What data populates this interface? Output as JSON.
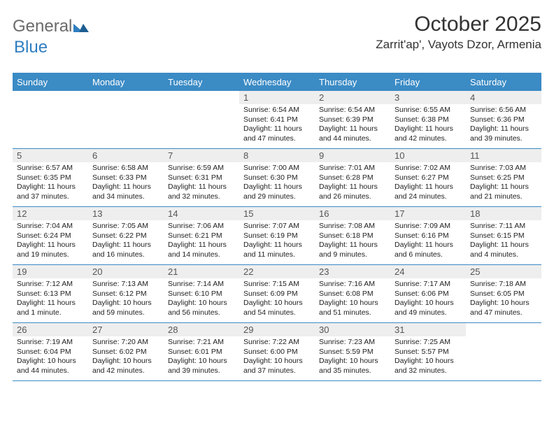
{
  "logo": {
    "textGray": "General",
    "textBlue": "Blue"
  },
  "title": "October 2025",
  "location": "Zarrit'ap', Vayots Dzor, Armenia",
  "colors": {
    "headerBar": "#3b8bc5",
    "dayBg": "#eeeeee",
    "white": "#ffffff",
    "textDark": "#333333",
    "textBody": "#222222",
    "logoGray": "#6a6a6a",
    "logoBlue": "#2f7ec0"
  },
  "weekdays": [
    "Sunday",
    "Monday",
    "Tuesday",
    "Wednesday",
    "Thursday",
    "Friday",
    "Saturday"
  ],
  "weeks": [
    [
      null,
      null,
      null,
      {
        "n": "1",
        "sr": "6:54 AM",
        "ss": "6:41 PM",
        "dl": "11 hours and 47 minutes."
      },
      {
        "n": "2",
        "sr": "6:54 AM",
        "ss": "6:39 PM",
        "dl": "11 hours and 44 minutes."
      },
      {
        "n": "3",
        "sr": "6:55 AM",
        "ss": "6:38 PM",
        "dl": "11 hours and 42 minutes."
      },
      {
        "n": "4",
        "sr": "6:56 AM",
        "ss": "6:36 PM",
        "dl": "11 hours and 39 minutes."
      }
    ],
    [
      {
        "n": "5",
        "sr": "6:57 AM",
        "ss": "6:35 PM",
        "dl": "11 hours and 37 minutes."
      },
      {
        "n": "6",
        "sr": "6:58 AM",
        "ss": "6:33 PM",
        "dl": "11 hours and 34 minutes."
      },
      {
        "n": "7",
        "sr": "6:59 AM",
        "ss": "6:31 PM",
        "dl": "11 hours and 32 minutes."
      },
      {
        "n": "8",
        "sr": "7:00 AM",
        "ss": "6:30 PM",
        "dl": "11 hours and 29 minutes."
      },
      {
        "n": "9",
        "sr": "7:01 AM",
        "ss": "6:28 PM",
        "dl": "11 hours and 26 minutes."
      },
      {
        "n": "10",
        "sr": "7:02 AM",
        "ss": "6:27 PM",
        "dl": "11 hours and 24 minutes."
      },
      {
        "n": "11",
        "sr": "7:03 AM",
        "ss": "6:25 PM",
        "dl": "11 hours and 21 minutes."
      }
    ],
    [
      {
        "n": "12",
        "sr": "7:04 AM",
        "ss": "6:24 PM",
        "dl": "11 hours and 19 minutes."
      },
      {
        "n": "13",
        "sr": "7:05 AM",
        "ss": "6:22 PM",
        "dl": "11 hours and 16 minutes."
      },
      {
        "n": "14",
        "sr": "7:06 AM",
        "ss": "6:21 PM",
        "dl": "11 hours and 14 minutes."
      },
      {
        "n": "15",
        "sr": "7:07 AM",
        "ss": "6:19 PM",
        "dl": "11 hours and 11 minutes."
      },
      {
        "n": "16",
        "sr": "7:08 AM",
        "ss": "6:18 PM",
        "dl": "11 hours and 9 minutes."
      },
      {
        "n": "17",
        "sr": "7:09 AM",
        "ss": "6:16 PM",
        "dl": "11 hours and 6 minutes."
      },
      {
        "n": "18",
        "sr": "7:11 AM",
        "ss": "6:15 PM",
        "dl": "11 hours and 4 minutes."
      }
    ],
    [
      {
        "n": "19",
        "sr": "7:12 AM",
        "ss": "6:13 PM",
        "dl": "11 hours and 1 minute."
      },
      {
        "n": "20",
        "sr": "7:13 AM",
        "ss": "6:12 PM",
        "dl": "10 hours and 59 minutes."
      },
      {
        "n": "21",
        "sr": "7:14 AM",
        "ss": "6:10 PM",
        "dl": "10 hours and 56 minutes."
      },
      {
        "n": "22",
        "sr": "7:15 AM",
        "ss": "6:09 PM",
        "dl": "10 hours and 54 minutes."
      },
      {
        "n": "23",
        "sr": "7:16 AM",
        "ss": "6:08 PM",
        "dl": "10 hours and 51 minutes."
      },
      {
        "n": "24",
        "sr": "7:17 AM",
        "ss": "6:06 PM",
        "dl": "10 hours and 49 minutes."
      },
      {
        "n": "25",
        "sr": "7:18 AM",
        "ss": "6:05 PM",
        "dl": "10 hours and 47 minutes."
      }
    ],
    [
      {
        "n": "26",
        "sr": "7:19 AM",
        "ss": "6:04 PM",
        "dl": "10 hours and 44 minutes."
      },
      {
        "n": "27",
        "sr": "7:20 AM",
        "ss": "6:02 PM",
        "dl": "10 hours and 42 minutes."
      },
      {
        "n": "28",
        "sr": "7:21 AM",
        "ss": "6:01 PM",
        "dl": "10 hours and 39 minutes."
      },
      {
        "n": "29",
        "sr": "7:22 AM",
        "ss": "6:00 PM",
        "dl": "10 hours and 37 minutes."
      },
      {
        "n": "30",
        "sr": "7:23 AM",
        "ss": "5:59 PM",
        "dl": "10 hours and 35 minutes."
      },
      {
        "n": "31",
        "sr": "7:25 AM",
        "ss": "5:57 PM",
        "dl": "10 hours and 32 minutes."
      },
      null
    ]
  ],
  "labels": {
    "sunrise": "Sunrise:",
    "sunset": "Sunset:",
    "daylight": "Daylight:"
  }
}
